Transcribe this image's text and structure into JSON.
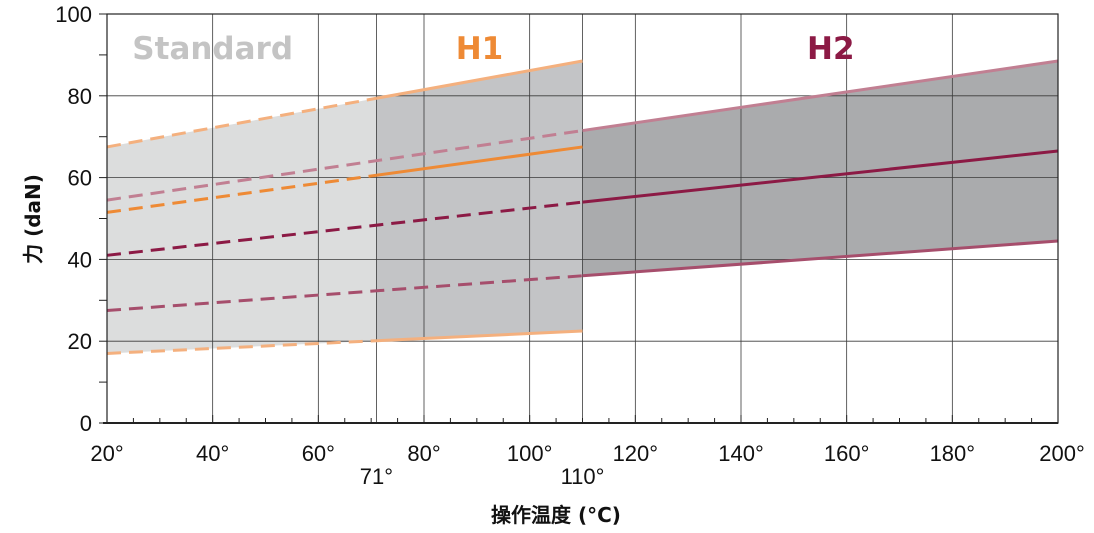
{
  "chart_data": {
    "type": "line",
    "xlabel": "操作温度 (°C)",
    "ylabel": "力 (daN)",
    "xlim": [
      20,
      200
    ],
    "ylim": [
      0,
      100
    ],
    "x_ticks": [
      {
        "value": 20,
        "label": "20°"
      },
      {
        "value": 40,
        "label": "40°"
      },
      {
        "value": 60,
        "label": "60°"
      },
      {
        "value": 71,
        "label": "71°"
      },
      {
        "value": 80,
        "label": "80°"
      },
      {
        "value": 100,
        "label": "100°"
      },
      {
        "value": 110,
        "label": "110°"
      },
      {
        "value": 120,
        "label": "120°"
      },
      {
        "value": 140,
        "label": "140°"
      },
      {
        "value": 160,
        "label": "160°"
      },
      {
        "value": 180,
        "label": "180°"
      },
      {
        "value": 200,
        "label": "200°"
      }
    ],
    "y_ticks": [
      {
        "value": 0,
        "label": "0"
      },
      {
        "value": 20,
        "label": "20"
      },
      {
        "value": 40,
        "label": "40"
      },
      {
        "value": 60,
        "label": "60"
      },
      {
        "value": 80,
        "label": "80"
      },
      {
        "value": 100,
        "label": "100"
      }
    ],
    "grid": true,
    "bands": [
      {
        "name": "Standard",
        "x_range": [
          20,
          71
        ],
        "color": "#dcdddd"
      },
      {
        "name": "H1",
        "x_range": [
          71,
          110
        ],
        "color": "#c3c4c6"
      },
      {
        "name": "H2",
        "x_range": [
          110,
          200
        ],
        "color": "#aaabad"
      }
    ],
    "band_labels": [
      {
        "text": "Standard",
        "x": 40,
        "y": 89,
        "color": "#c4c4c4"
      },
      {
        "text": "H1",
        "x": 90.5,
        "y": 89,
        "color": "#ee8a35"
      },
      {
        "text": "H2",
        "x": 157,
        "y": 89,
        "color": "#8c1a45"
      }
    ],
    "series": [
      {
        "group": "H1",
        "role": "upper",
        "color": "#f4b07e",
        "width": 3,
        "points": [
          [
            20,
            67.5
          ],
          [
            110,
            88.5
          ]
        ],
        "solid_from": 71
      },
      {
        "group": "H1",
        "role": "nominal",
        "color": "#ee8a35",
        "width": 3,
        "points": [
          [
            20,
            51.5
          ],
          [
            110,
            67.5
          ]
        ],
        "solid_from": 71
      },
      {
        "group": "H1",
        "role": "lower",
        "color": "#f4b07e",
        "width": 3,
        "points": [
          [
            20,
            17
          ],
          [
            110,
            22.5
          ]
        ],
        "solid_from": 71
      },
      {
        "group": "H2",
        "role": "upper",
        "color": "#c17f92",
        "width": 3,
        "points": [
          [
            20,
            54.5
          ],
          [
            110,
            71.5
          ],
          [
            200,
            88.5
          ]
        ],
        "solid_from": 110
      },
      {
        "group": "H2",
        "role": "nominal",
        "color": "#8c1a45",
        "width": 3,
        "points": [
          [
            20,
            41
          ],
          [
            110,
            54
          ],
          [
            200,
            66.5
          ]
        ],
        "solid_from": 110
      },
      {
        "group": "H2",
        "role": "lower",
        "color": "#a64e6c",
        "width": 3,
        "points": [
          [
            20,
            27.5
          ],
          [
            110,
            36
          ],
          [
            200,
            44.5
          ]
        ],
        "solid_from": 110
      }
    ]
  }
}
